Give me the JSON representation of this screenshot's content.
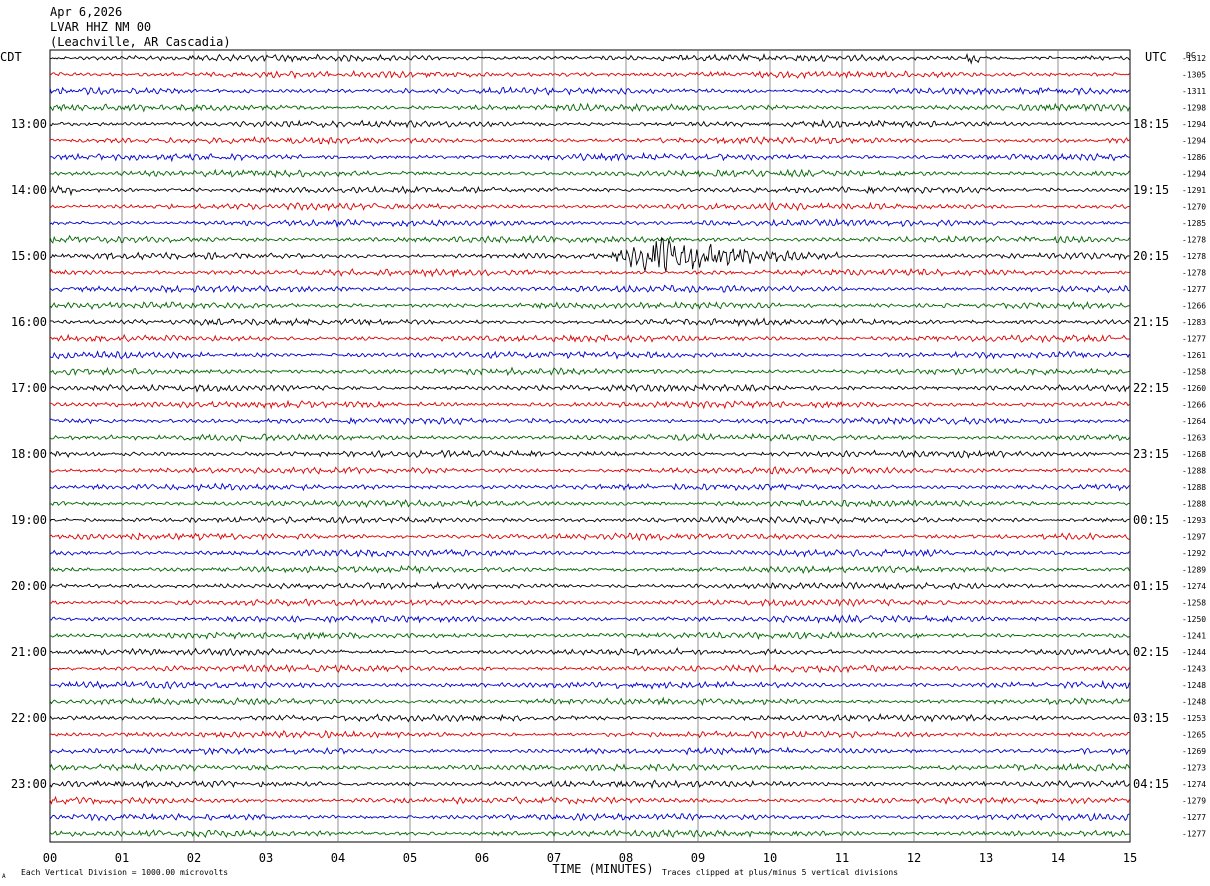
{
  "header": {
    "date": "Apr 6,2026",
    "station": "LVAR HHZ NM 00",
    "location": "(Leachville, AR Cascadia)"
  },
  "left_tz": "CDT",
  "right_tz": "UTC",
  "dc_label": "DC",
  "footer": {
    "scale_note": "Each Vertical Division = 1000.00 microvolts",
    "xlabel": "TIME (MINUTES)",
    "clip_note": "Traces clipped at plus/minus 5 vertical divisions",
    "corner_mark": "A"
  },
  "colors": [
    "#000000",
    "#dd0000",
    "#0000cc",
    "#006600"
  ],
  "chart_data": {
    "type": "line",
    "title": "",
    "xlabel": "TIME (MINUTES)",
    "xlim": [
      0,
      15
    ],
    "x_ticks": [
      "00",
      "01",
      "02",
      "03",
      "04",
      "05",
      "06",
      "07",
      "08",
      "09",
      "10",
      "11",
      "12",
      "13",
      "14",
      "15"
    ],
    "grid": true,
    "left_hour_labels": [
      "13:00",
      "14:00",
      "15:00",
      "16:00",
      "17:00",
      "18:00",
      "19:00",
      "20:00",
      "21:00",
      "22:00",
      "23:00"
    ],
    "right_hour_labels": [
      "18:15",
      "19:15",
      "20:15",
      "21:15",
      "22:15",
      "23:15",
      "00:15",
      "01:15",
      "02:15",
      "03:15",
      "04:15"
    ],
    "first_labeled_row": 4,
    "dc_offsets": [
      "-1312",
      "-1305",
      "-1311",
      "-1298",
      "-1294",
      "-1294",
      "-1286",
      "-1294",
      "-1291",
      "-1270",
      "-1285",
      "-1278",
      "-1278",
      "-1278",
      "-1277",
      "-1266",
      "-1283",
      "-1277",
      "-1261",
      "-1258",
      "-1260",
      "-1266",
      "-1264",
      "-1263",
      "-1268",
      "-1288",
      "-1288",
      "-1288",
      "-1293",
      "-1297",
      "-1292",
      "-1289",
      "-1274",
      "-1258",
      "-1250",
      "-1241",
      "-1244",
      "-1243",
      "-1248",
      "-1248",
      "-1253",
      "-1265",
      "-1269",
      "-1273",
      "-1274",
      "-1279",
      "-1277",
      "-1277"
    ],
    "events": [
      {
        "row": 12,
        "start_min": 7.8,
        "end_min": 11.0,
        "peak_min": 8.4,
        "note": "large earthquake signal"
      },
      {
        "row": 8,
        "start_min": 0.0,
        "end_min": 0.3,
        "peak_min": 0.1
      },
      {
        "row": 0,
        "start_min": 12.7,
        "end_min": 12.9,
        "peak_min": 12.8
      }
    ]
  }
}
